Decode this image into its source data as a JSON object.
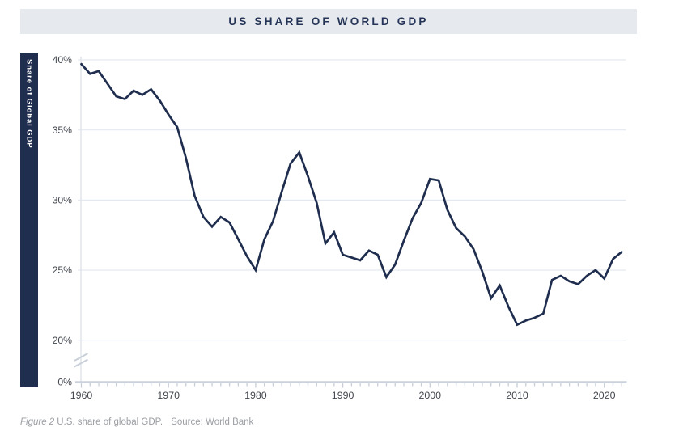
{
  "header": {
    "title": "US SHARE OF WORLD GDP"
  },
  "y_axis": {
    "label": "Share of Global GDP",
    "ticks": [
      {
        "label": "40%",
        "value": 40
      },
      {
        "label": "35%",
        "value": 35
      },
      {
        "label": "30%",
        "value": 30
      },
      {
        "label": "25%",
        "value": 25
      },
      {
        "label": "20%",
        "value": 20
      }
    ],
    "baseline_label": "0%",
    "axis_break": true
  },
  "x_axis": {
    "decade_labels": [
      "1960",
      "1970",
      "1980",
      "1990",
      "2000",
      "2010",
      "2020"
    ],
    "decade_years": [
      1960,
      1970,
      1980,
      1990,
      2000,
      2010,
      2020
    ],
    "minor_tick_start": 1960,
    "minor_tick_end": 2022
  },
  "caption": {
    "figure_label": "Figure 2",
    "description": "U.S. share of global GDP. ",
    "source": "Source: World Bank"
  },
  "colors": {
    "navy": "#1f2d4e",
    "title_text": "#243457",
    "title_band_bg": "#e6e9ed",
    "line": "#1f2d4e",
    "gridline": "#e4e9f0",
    "axis_line": "#cbd2db",
    "y_axis_line": "#dfe4eb",
    "tick": "#c7ced8",
    "break_mark": "#c9d0d9",
    "tick_label": "#42464e",
    "caption_text": "#9b9ea3"
  },
  "chart_data": {
    "type": "line",
    "title": "US SHARE OF WORLD GDP",
    "xlabel": "",
    "ylabel": "Share of Global GDP",
    "series_name": "US share of world GDP (%)",
    "x": [
      1960,
      1961,
      1962,
      1963,
      1964,
      1965,
      1966,
      1967,
      1968,
      1969,
      1970,
      1971,
      1972,
      1973,
      1974,
      1975,
      1976,
      1977,
      1978,
      1979,
      1980,
      1981,
      1982,
      1983,
      1984,
      1985,
      1986,
      1987,
      1988,
      1989,
      1990,
      1991,
      1992,
      1993,
      1994,
      1995,
      1996,
      1997,
      1998,
      1999,
      2000,
      2001,
      2002,
      2003,
      2004,
      2005,
      2006,
      2007,
      2008,
      2009,
      2010,
      2011,
      2012,
      2013,
      2014,
      2015,
      2016,
      2017,
      2018,
      2019,
      2020,
      2021,
      2022
    ],
    "values": [
      39.7,
      39.0,
      39.2,
      38.3,
      37.4,
      37.2,
      37.8,
      37.5,
      37.9,
      37.1,
      36.1,
      35.2,
      33.0,
      30.3,
      28.8,
      28.1,
      28.8,
      28.4,
      27.2,
      26.0,
      25.0,
      27.2,
      28.5,
      30.6,
      32.6,
      33.4,
      31.7,
      29.8,
      26.9,
      27.7,
      26.1,
      25.9,
      25.7,
      26.4,
      26.1,
      24.5,
      25.4,
      27.1,
      28.7,
      29.8,
      31.5,
      31.4,
      29.3,
      28.0,
      27.4,
      26.5,
      24.9,
      23.0,
      23.9,
      22.4,
      21.1,
      21.4,
      21.6,
      21.9,
      24.3,
      24.6,
      24.2,
      24.0,
      24.6,
      25.0,
      24.4,
      25.8,
      26.3
    ],
    "xlim": [
      1960,
      2023
    ],
    "ylim_display": [
      20,
      40
    ],
    "axis_break_below": 20,
    "grid": "horizontal",
    "legend": "none"
  }
}
